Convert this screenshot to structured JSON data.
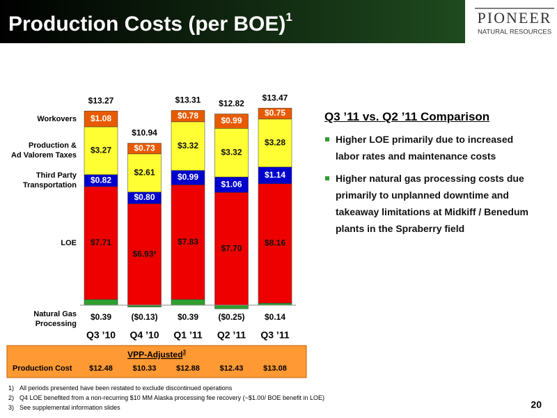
{
  "header": {
    "title": "Production Costs (per BOE)",
    "title_note": "1"
  },
  "logo": {
    "name": "PIONEER",
    "tagline": "NATURAL RESOURCES"
  },
  "chart_data": {
    "type": "bar",
    "stacked": true,
    "categories": [
      "Q3 ’10",
      "Q4 ’10",
      "Q1 ’11",
      "Q2 ’11",
      "Q3 ’11"
    ],
    "series": [
      {
        "name": "Natural Gas\nProcessing",
        "color": "#2e9e2e",
        "values": [
          0.39,
          -0.13,
          0.39,
          -0.25,
          0.14
        ],
        "value_labels": [
          "$0.39",
          "($0.13)",
          "$0.39",
          "($0.25)",
          "$0.14"
        ]
      },
      {
        "name": "LOE",
        "color": "#ee0000",
        "values": [
          7.71,
          6.93,
          7.83,
          7.7,
          8.16
        ],
        "value_labels": [
          "$7.71",
          "$6.93²",
          "$7.83",
          "$7.70",
          "$8.16"
        ]
      },
      {
        "name": "Third Party\nTransportation",
        "color": "#0000cc",
        "values": [
          0.82,
          0.8,
          0.99,
          1.06,
          1.14
        ],
        "value_labels": [
          "$0.82",
          "$0.80",
          "$0.99",
          "$1.06",
          "$1.14"
        ]
      },
      {
        "name": "Production &\nAd Valorem Taxes",
        "color": "#ffff33",
        "values": [
          3.27,
          2.61,
          3.32,
          3.32,
          3.28
        ],
        "value_labels": [
          "$3.27",
          "$2.61",
          "$3.32",
          "$3.32",
          "$3.28"
        ]
      },
      {
        "name": "Workovers",
        "color": "#e85a00",
        "values": [
          1.08,
          0.73,
          0.78,
          0.99,
          0.75
        ],
        "value_labels": [
          "$1.08",
          "$0.73",
          "$0.78",
          "$0.99",
          "$0.75"
        ]
      }
    ],
    "totals": {
      "values": [
        13.27,
        10.94,
        13.31,
        12.82,
        13.47
      ],
      "value_labels": [
        "$13.27",
        "$10.94",
        "$13.31",
        "$12.82",
        "$13.47"
      ]
    },
    "ylim": [
      0,
      14
    ]
  },
  "comparison": {
    "title": "Q3 ’11 vs. Q2 ’11 Comparison",
    "bullets": [
      "Higher LOE primarily due to increased labor rates and maintenance costs",
      "Higher natural gas processing costs due primarily to unplanned downtime and takeaway limitations at Midkiff / Benedum plants in the Spraberry field"
    ]
  },
  "vpp_table": {
    "title": "VPP-Adjusted",
    "title_note": "3",
    "row_label": "Production Cost",
    "values": [
      "$12.48",
      "$10.33",
      "$12.88",
      "$12.43",
      "$13.08"
    ]
  },
  "footnotes": [
    {
      "mark": "1)",
      "text": "All periods presented have been restated to exclude discontinued operations"
    },
    {
      "mark": "2)",
      "text": "Q4 LOE benefited from a non-recurring $10 MM Alaska processing fee recovery (~$1.00/ BOE benefit in LOE)"
    },
    {
      "mark": "3)",
      "text": "See supplemental information slides"
    }
  ],
  "page_number": "20"
}
